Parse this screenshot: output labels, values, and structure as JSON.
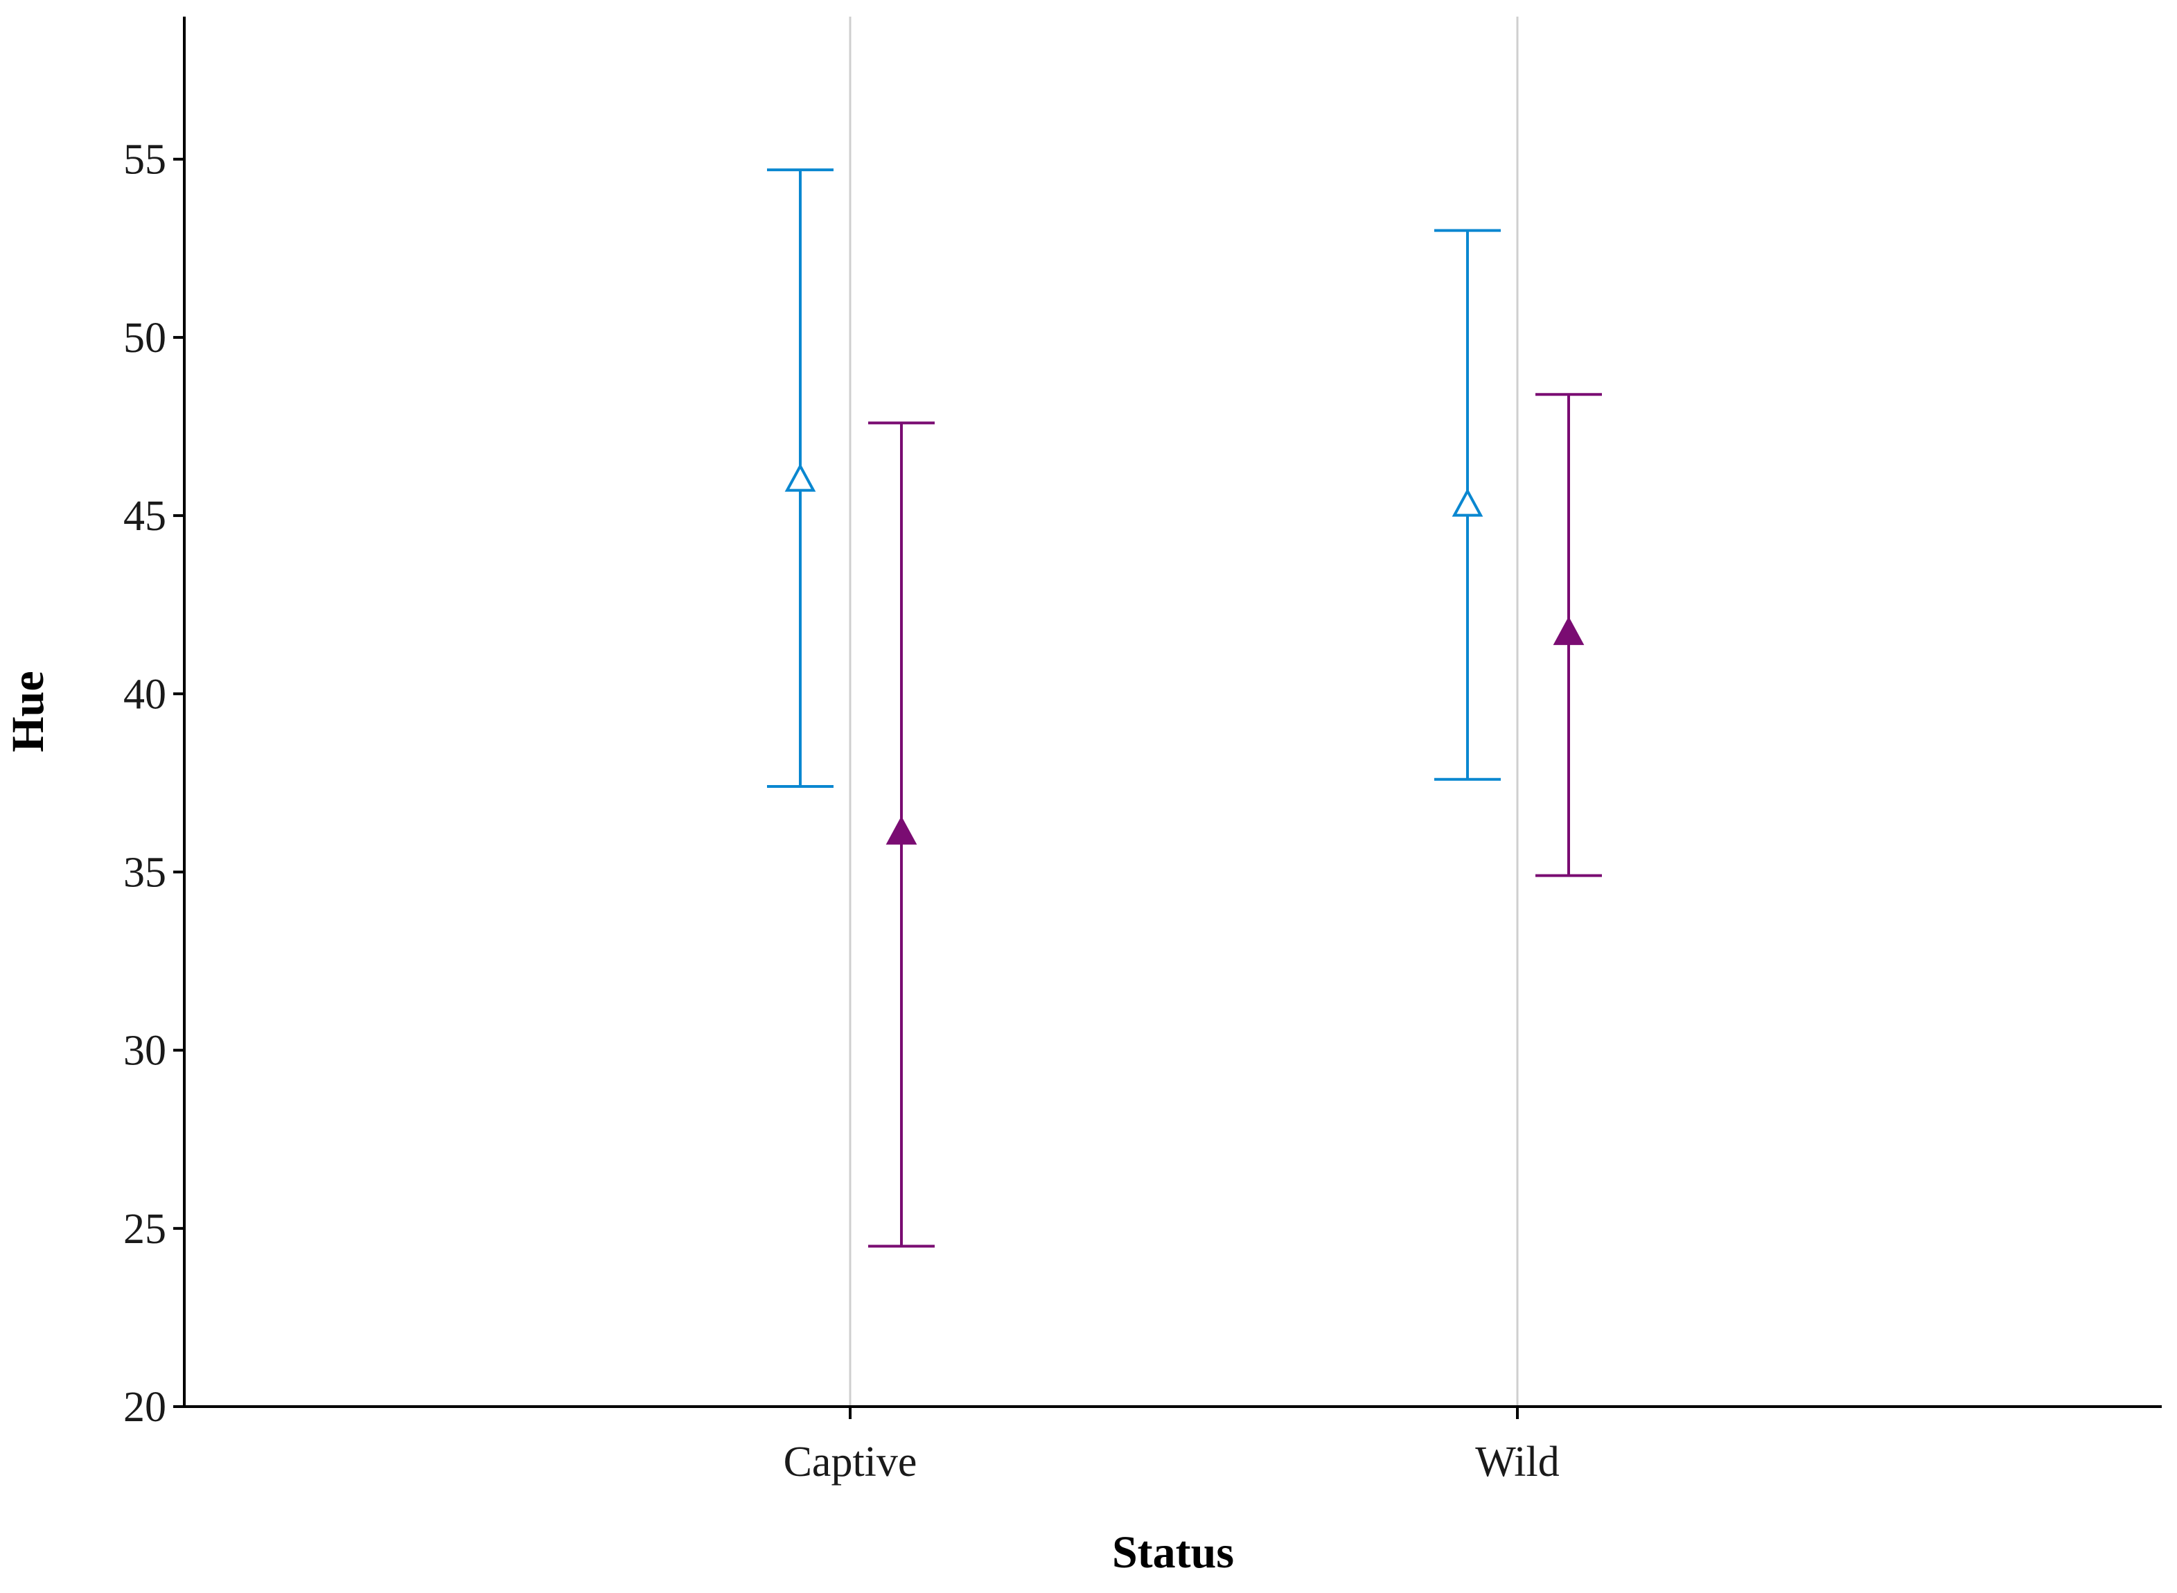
{
  "chart_data": {
    "type": "scatter",
    "xlabel": "Status",
    "ylabel": "Hue",
    "categories": [
      "Captive",
      "Wild"
    ],
    "ylim": [
      20,
      59
    ],
    "yticks": [
      20,
      25,
      30,
      35,
      40,
      45,
      50,
      55
    ],
    "grid": "vertical lines at categories",
    "series": [
      {
        "marker": "open-triangle",
        "color": "#0a87d0",
        "mean": [
          46.0,
          45.3
        ],
        "lower": [
          37.4,
          37.6
        ],
        "upper": [
          54.7,
          53.0
        ]
      },
      {
        "marker": "filled-triangle",
        "color": "#7a0c72",
        "mean": [
          36.1,
          41.7
        ],
        "lower": [
          24.5,
          34.9
        ],
        "upper": [
          47.6,
          48.4
        ]
      }
    ]
  }
}
